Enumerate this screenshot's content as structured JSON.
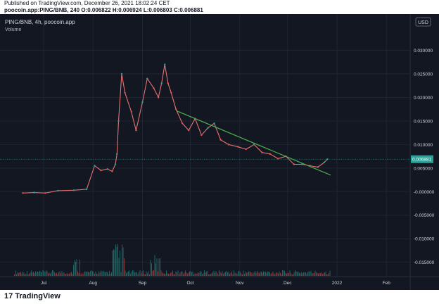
{
  "header": {
    "published": "Published on TradingView.com, December 26, 2021 18:02:24 CET",
    "ohlc": "poocoin.app:PING/BNB, 240 O:0.006822 H:0.006924 L:0.006803 C:0.006881"
  },
  "chart_data": {
    "type": "line",
    "symbol_label": "PING/BNB, 4h, poocoin.app",
    "volume_label": "Volume",
    "currency": "USD",
    "x_labels": [
      "Jul",
      "Aug",
      "Sep",
      "Oct",
      "Nov",
      "Dec",
      "2022",
      "Feb"
    ],
    "y_ticks": [
      "0.030000",
      "0.025000",
      "0.020000",
      "0.015000",
      "0.010000",
      "0.005000",
      "-0.000000",
      "-0.005000",
      "-0.010000",
      "-0.015000"
    ],
    "ylim": [
      -0.0165,
      0.0325
    ],
    "last_price": "0.006881",
    "price_series": {
      "x": [
        "2021-06-18",
        "2021-06-25",
        "2021-07-02",
        "2021-07-10",
        "2021-07-20",
        "2021-07-28",
        "2021-08-02",
        "2021-08-06",
        "2021-08-10",
        "2021-08-13",
        "2021-08-15",
        "2021-08-16",
        "2021-08-17",
        "2021-08-19",
        "2021-08-21",
        "2021-08-25",
        "2021-08-28",
        "2021-09-01",
        "2021-09-04",
        "2021-09-08",
        "2021-09-11",
        "2021-09-13",
        "2021-09-15",
        "2021-09-17",
        "2021-09-19",
        "2021-09-22",
        "2021-09-26",
        "2021-09-30",
        "2021-10-04",
        "2021-10-08",
        "2021-10-12",
        "2021-10-16",
        "2021-10-20",
        "2021-10-25",
        "2021-10-31",
        "2021-11-05",
        "2021-11-10",
        "2021-11-15",
        "2021-11-20",
        "2021-11-25",
        "2021-11-30",
        "2021-12-05",
        "2021-12-10",
        "2021-12-15",
        "2021-12-20",
        "2021-12-24",
        "2021-12-26"
      ],
      "y": [
        -0.0003,
        -0.0002,
        -0.0003,
        0.0002,
        0.0003,
        0.0005,
        0.0055,
        0.0045,
        0.0048,
        0.0043,
        0.0058,
        0.008,
        0.015,
        0.025,
        0.021,
        0.017,
        0.013,
        0.019,
        0.024,
        0.022,
        0.02,
        0.023,
        0.027,
        0.023,
        0.021,
        0.0175,
        0.0145,
        0.013,
        0.0155,
        0.012,
        0.0135,
        0.0145,
        0.011,
        0.01,
        0.0095,
        0.009,
        0.01,
        0.0083,
        0.008,
        0.007,
        0.0075,
        0.0058,
        0.0058,
        0.0055,
        0.0052,
        0.0062,
        0.006881
      ]
    },
    "trendline": {
      "x": [
        "2021-09-22",
        "2021-12-28"
      ],
      "y": [
        0.0172,
        0.0035
      ]
    }
  },
  "footer": {
    "brand": "TradingView",
    "logo": "17"
  }
}
